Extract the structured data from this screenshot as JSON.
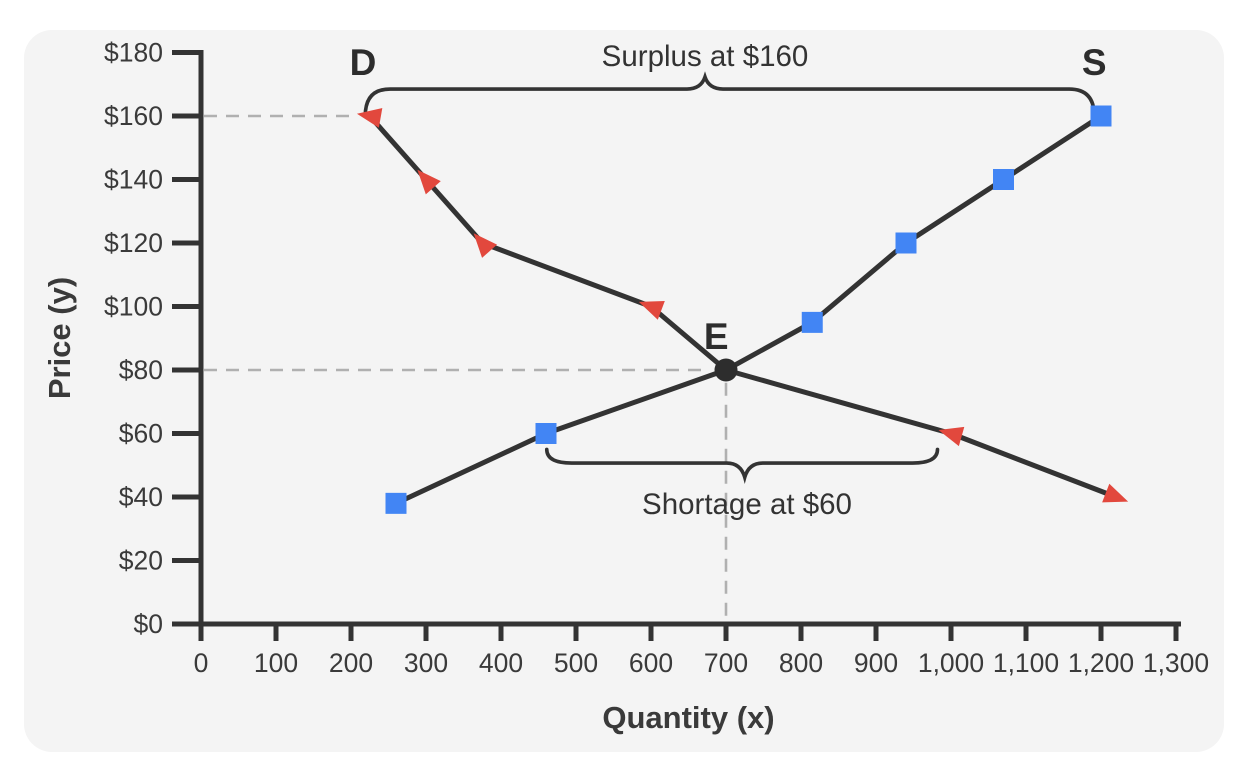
{
  "page": {
    "background": "#ffffff",
    "card_color": "#f4f4f4"
  },
  "chart_data": {
    "type": "line",
    "title": "",
    "xlabel": "Quantity (x)",
    "ylabel": "Price (y)",
    "xlim": [
      0,
      1300
    ],
    "ylim": [
      0,
      180
    ],
    "grid": false,
    "legend": "none",
    "x_tick_labels": [
      "0",
      "100",
      "200",
      "300",
      "400",
      "500",
      "600",
      "700",
      "800",
      "900",
      "1,000",
      "1,100",
      "1,200",
      "1,300"
    ],
    "y_tick_labels": [
      "$0",
      "$20",
      "$40",
      "$60",
      "$80",
      "$100",
      "$120",
      "$140",
      "$160",
      "$180"
    ],
    "axis_color": "#333333",
    "tick_text_color": "#3a3a3a",
    "label_color": "#2d2d2d",
    "guide_color": "#b0b0b0",
    "series": [
      {
        "name": "Demand",
        "curve_label": "D",
        "marker": "triangle",
        "marker_color": "#e2483d",
        "line_color": "#333333",
        "points": [
          [
            225,
            160
          ],
          [
            300,
            140
          ],
          [
            375,
            120
          ],
          [
            600,
            100
          ],
          [
            700,
            80
          ],
          [
            1000,
            60
          ],
          [
            1220,
            40
          ]
        ],
        "label_pos": {
          "qty": 216,
          "price": 172.9
        }
      },
      {
        "name": "Supply",
        "curve_label": "S",
        "marker": "square",
        "marker_color": "#4285f4",
        "line_color": "#333333",
        "points": [
          [
            260,
            38
          ],
          [
            460,
            60
          ],
          [
            700,
            80
          ],
          [
            815,
            95
          ],
          [
            940,
            120
          ],
          [
            1070,
            140
          ],
          [
            1200,
            160
          ]
        ],
        "label_pos": {
          "qty": 1191,
          "price": 172.9
        }
      }
    ],
    "equilibrium": {
      "label": "E",
      "qty": 700,
      "price": 80,
      "color": "#2d2d2d",
      "label_pos": {
        "qty": 687,
        "price": 86.6
      }
    },
    "guides": [
      {
        "orient": "h",
        "price": 160,
        "from_qty": 4,
        "to_qty": 200
      },
      {
        "orient": "h",
        "price": 80,
        "from_qty": 4,
        "to_qty": 675
      },
      {
        "orient": "v",
        "qty": 700,
        "from_price": 76,
        "to_price": 0.6
      }
    ],
    "annotations": [
      {
        "text": "Surplus at $160",
        "tip": "up",
        "qty1": 219,
        "qty2": 1191,
        "tip_qty": 672,
        "body_price": 168.5,
        "tip_price": 172.3,
        "end_price": 160,
        "text_qty": 672,
        "text_price": 175.8
      },
      {
        "text": "Shortage at $60",
        "tip": "down",
        "qty1": 461,
        "qty2": 982,
        "tip_qty": 725,
        "body_price": 50.7,
        "tip_price": 46.2,
        "end_price": 55,
        "text_qty": 728,
        "text_price": 34.6
      }
    ]
  }
}
